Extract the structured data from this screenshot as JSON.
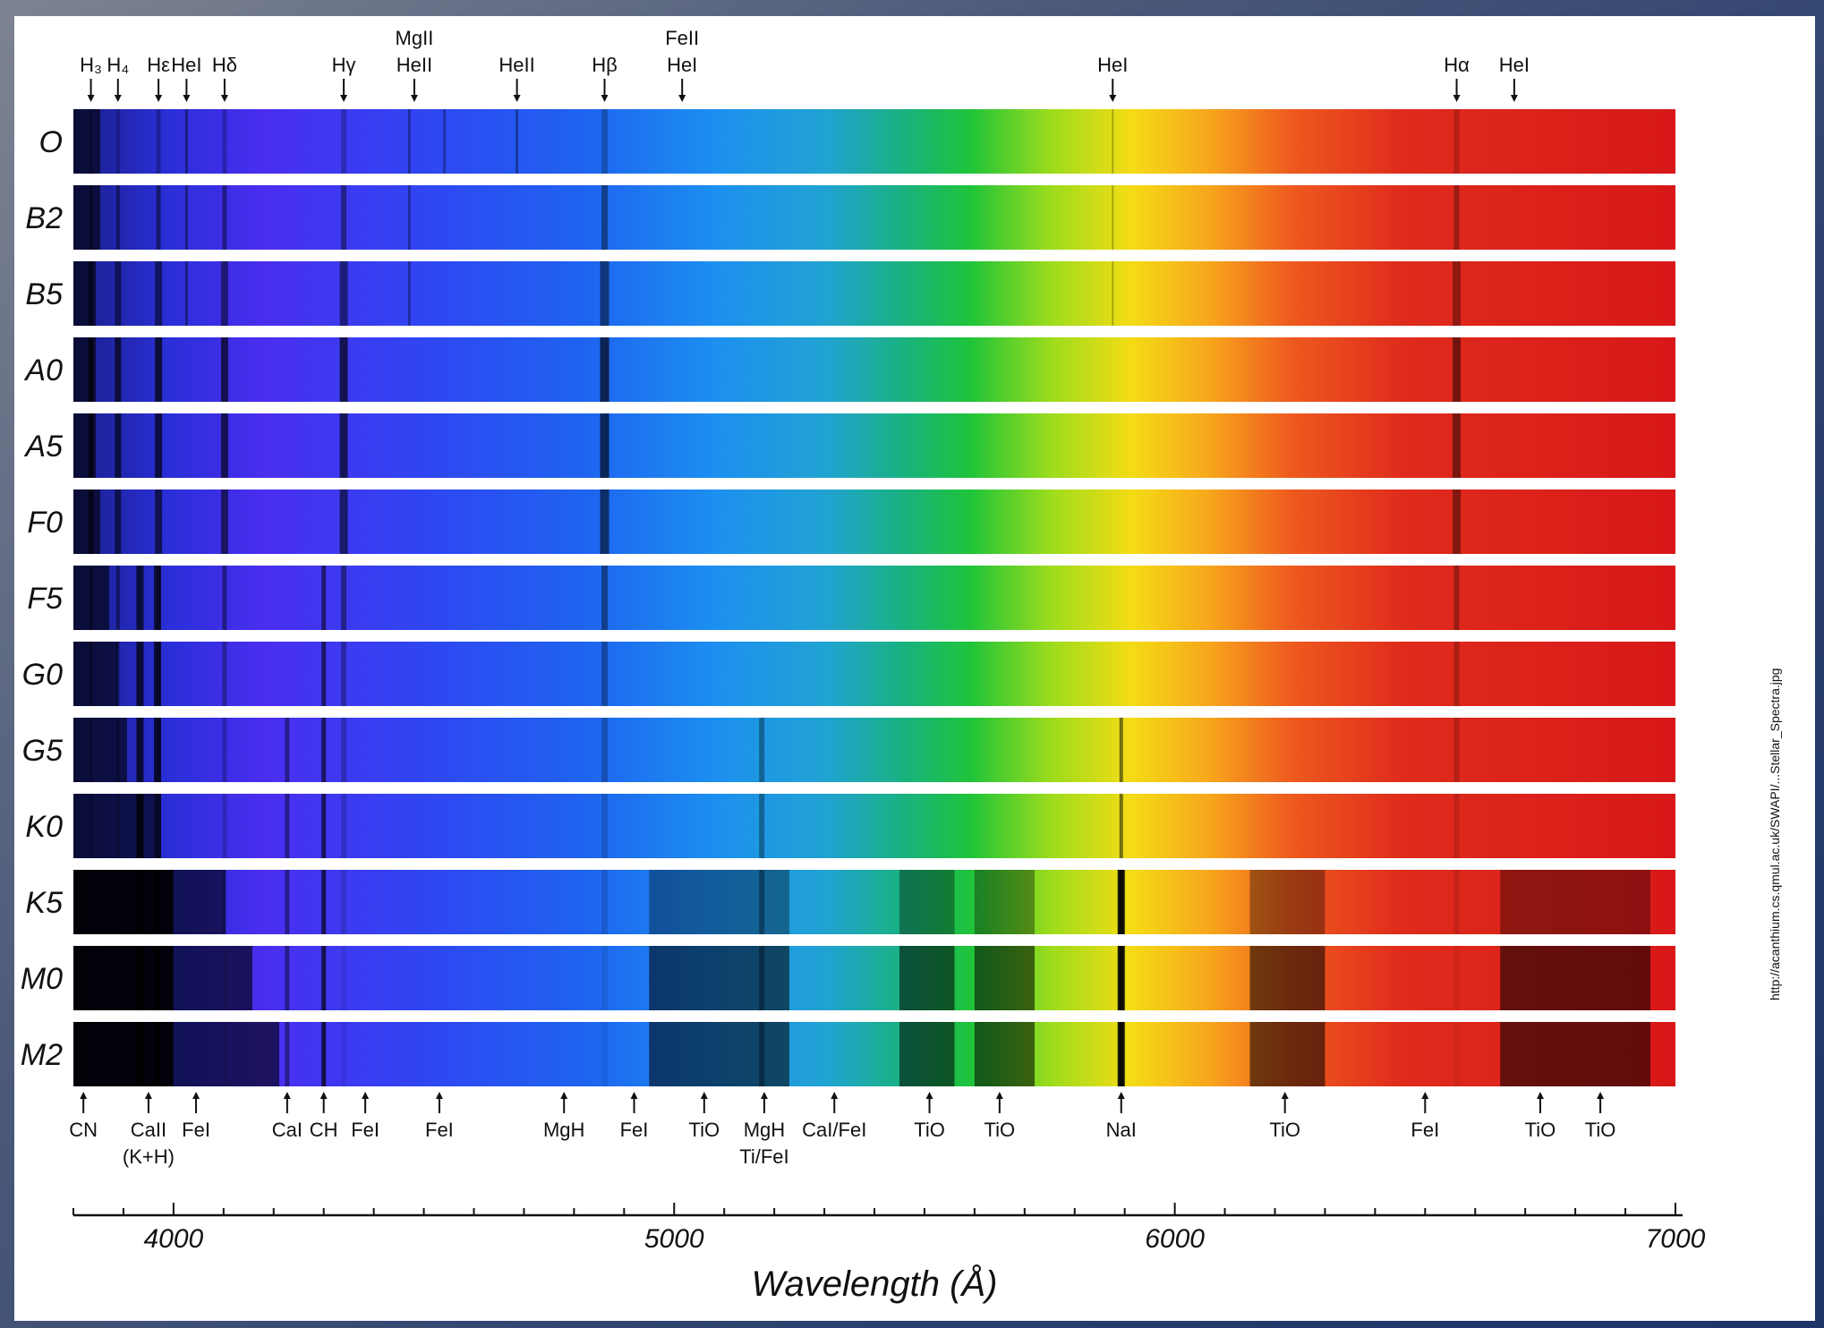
{
  "chart_data": {
    "type": "heatmap",
    "xlabel": "Wavelength (Å)",
    "x_range": [
      3800,
      7000
    ],
    "x_ticks": [
      "4000",
      "5000",
      "6000",
      "7000"
    ],
    "x_tick_values": [
      4000,
      5000,
      6000,
      7000
    ],
    "rows": [
      "O",
      "B2",
      "B5",
      "A0",
      "A5",
      "F0",
      "F5",
      "G0",
      "G5",
      "K0",
      "K5",
      "M0",
      "M2"
    ],
    "top_lines": [
      {
        "text": "H₃",
        "wl": 3835
      },
      {
        "text": "H₄",
        "wl": 3889
      },
      {
        "text": "Hε",
        "wl": 3970
      },
      {
        "text": "HeI",
        "wl": 4026
      },
      {
        "text": "Hδ",
        "wl": 4102
      },
      {
        "text": "Hγ",
        "wl": 4340
      },
      {
        "text": "MgII",
        "wl": 4481,
        "row": 0
      },
      {
        "text": "HeII",
        "wl": 4481,
        "row": 1
      },
      {
        "text": "HeII",
        "wl": 4686
      },
      {
        "text": "Hβ",
        "wl": 4861
      },
      {
        "text": "FeII",
        "wl": 5016,
        "row": 0
      },
      {
        "text": "HeI",
        "wl": 5016,
        "row": 1
      },
      {
        "text": "HeI",
        "wl": 5876
      },
      {
        "text": "Hα",
        "wl": 6563
      },
      {
        "text": "HeI",
        "wl": 6678
      }
    ],
    "bottom_lines": [
      {
        "text": "CN",
        "wl": 3820
      },
      {
        "text": "CaII",
        "wl": 3950
      },
      {
        "text": "(K+H)",
        "wl": 3950,
        "row": 1
      },
      {
        "text": "FeI",
        "wl": 4045
      },
      {
        "text": "CaI",
        "wl": 4227
      },
      {
        "text": "CH",
        "wl": 4300
      },
      {
        "text": "FeI",
        "wl": 4383
      },
      {
        "text": "FeI",
        "wl": 4531
      },
      {
        "text": "MgH",
        "wl": 4780
      },
      {
        "text": "FeI",
        "wl": 4920
      },
      {
        "text": "TiO",
        "wl": 5060
      },
      {
        "text": "MgH",
        "wl": 5180
      },
      {
        "text": "Ti/FeI",
        "wl": 5180,
        "row": 1
      },
      {
        "text": "CaI/FeI",
        "wl": 5320
      },
      {
        "text": "TiO",
        "wl": 5510
      },
      {
        "text": "TiO",
        "wl": 5650
      },
      {
        "text": "NaI",
        "wl": 5893
      },
      {
        "text": "TiO",
        "wl": 6220
      },
      {
        "text": "FeI",
        "wl": 6500
      },
      {
        "text": "TiO",
        "wl": 6730
      },
      {
        "text": "TiO",
        "wl": 6850
      }
    ],
    "grid": false
  },
  "side_note": "http://acanthium.cs.qmul.ac.uk/SWAPI/...Stellar_Spectra.jpg",
  "colors": {
    "row_separator": "#ffffff",
    "frame_bg": "#ffffff",
    "text": "#111111"
  }
}
